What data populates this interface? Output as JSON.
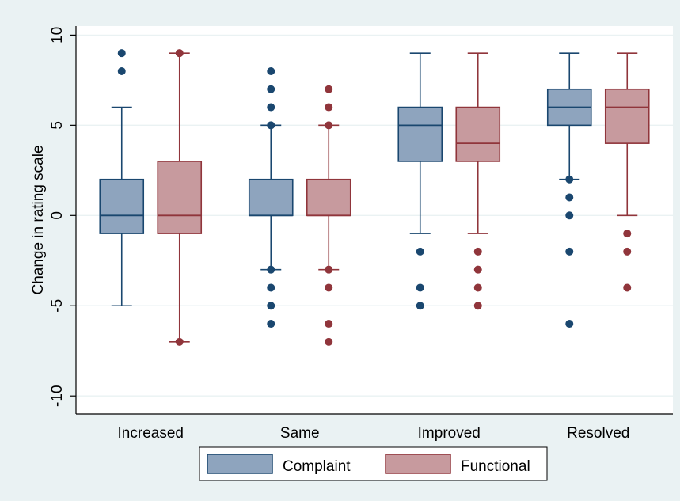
{
  "colors": {
    "background": "#eaf2f3",
    "plot_background": "#ffffff",
    "gridline": "#eaf2f3",
    "complaint_fill": "#8ea4be",
    "complaint_stroke": "#1a476f",
    "functional_fill": "#c79a9e",
    "functional_stroke": "#90353b"
  },
  "chart_data": {
    "type": "boxplot",
    "title": "",
    "xlabel": "",
    "ylabel": "Change in rating scale",
    "ylim": [
      -11,
      10.5
    ],
    "yticks": [
      10,
      5,
      0,
      -5,
      -10
    ],
    "ytick_labels": [
      "10",
      "5",
      "0",
      "-5",
      "-10"
    ],
    "grid": true,
    "legend_position": "bottom",
    "categories": [
      "Increased",
      "Same",
      "Improved",
      "Resolved"
    ],
    "series": [
      {
        "name": "Complaint",
        "boxes": [
          {
            "whisker_low": -5,
            "q1": -1,
            "median": 0,
            "q3": 2,
            "whisker_high": 6,
            "outliers": [
              9,
              8
            ]
          },
          {
            "whisker_low": -3,
            "q1": 0,
            "median": 0,
            "q3": 2,
            "whisker_high": 5,
            "outliers": [
              8,
              7,
              6,
              5,
              -3,
              -4,
              -5,
              -6
            ]
          },
          {
            "whisker_low": -1,
            "q1": 3,
            "median": 5,
            "q3": 6,
            "whisker_high": 9,
            "outliers": [
              -2,
              -4,
              -5
            ]
          },
          {
            "whisker_low": 2,
            "q1": 5,
            "median": 6,
            "q3": 7,
            "whisker_high": 9,
            "outliers": [
              2,
              1,
              0,
              -2,
              -6
            ]
          }
        ]
      },
      {
        "name": "Functional",
        "boxes": [
          {
            "whisker_low": -7,
            "q1": -1,
            "median": 0,
            "q3": 3,
            "whisker_high": 9,
            "outliers": [
              9,
              -7
            ]
          },
          {
            "whisker_low": -3,
            "q1": 0,
            "median": 0,
            "q3": 2,
            "whisker_high": 5,
            "outliers": [
              7,
              6,
              5,
              -3,
              -4,
              -6,
              -7
            ]
          },
          {
            "whisker_low": -1,
            "q1": 3,
            "median": 4,
            "q3": 6,
            "whisker_high": 9,
            "outliers": [
              -2,
              -3,
              -4,
              -5
            ]
          },
          {
            "whisker_low": 0,
            "q1": 4,
            "median": 6,
            "q3": 7,
            "whisker_high": 9,
            "outliers": [
              -1,
              -2,
              -4
            ]
          }
        ]
      }
    ]
  }
}
